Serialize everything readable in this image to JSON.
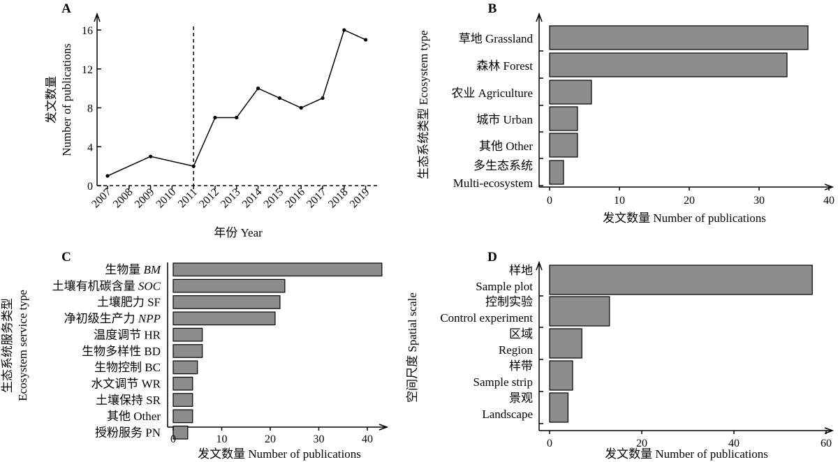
{
  "chart_data": [
    {
      "panel": "A",
      "type": "line",
      "x": [
        "2007",
        "2008",
        "2009",
        "2010",
        "2011",
        "2012",
        "2013",
        "2014",
        "2015",
        "2016",
        "2017",
        "2018",
        "2019"
      ],
      "points": [
        {
          "x": "2007",
          "y": 1
        },
        {
          "x": "2009",
          "y": 3
        },
        {
          "x": "2011",
          "y": 2
        },
        {
          "x": "2012",
          "y": 7
        },
        {
          "x": "2013",
          "y": 7
        },
        {
          "x": "2014",
          "y": 10
        },
        {
          "x": "2015",
          "y": 9
        },
        {
          "x": "2016",
          "y": 8
        },
        {
          "x": "2017",
          "y": 9
        },
        {
          "x": "2018",
          "y": 16
        },
        {
          "x": "2019",
          "y": 15
        }
      ],
      "yticks": [
        "0",
        "4",
        "8",
        "12",
        "16"
      ],
      "ylim": [
        0,
        17
      ],
      "vline_at": "2011",
      "xlabel": "年份 Year",
      "ylabel_cn": "发文数量",
      "ylabel_en": "Number of publications"
    },
    {
      "panel": "B",
      "type": "bar",
      "orientation": "horizontal",
      "categories": [
        {
          "line1": "草地 Grassland",
          "line2": ""
        },
        {
          "line1": "森林 Forest",
          "line2": ""
        },
        {
          "line1": "农业 Agriculture",
          "line2": ""
        },
        {
          "line1": "城市 Urban",
          "line2": ""
        },
        {
          "line1": "其他 Other",
          "line2": ""
        },
        {
          "line1": "多生态系统",
          "line2": "Multi-ecosystem"
        }
      ],
      "values": [
        37,
        34,
        6,
        4,
        4,
        2
      ],
      "xticks": [
        "0",
        "10",
        "20",
        "30",
        "40"
      ],
      "xlim": [
        0,
        40
      ],
      "xlabel": "发文数量 Number of publications",
      "ylabel": "生态系统类型 Ecosystem type"
    },
    {
      "panel": "C",
      "type": "bar",
      "orientation": "horizontal",
      "categories": [
        {
          "cn": "生物量 ",
          "it": "BM",
          "en": ""
        },
        {
          "cn": "土壤有机碳含量 ",
          "it": "SOC",
          "en": ""
        },
        {
          "cn": "土壤肥力 SF",
          "it": "",
          "en": ""
        },
        {
          "cn": "净初级生产力 ",
          "it": "NPP",
          "en": ""
        },
        {
          "cn": "温度调节 HR",
          "it": "",
          "en": ""
        },
        {
          "cn": "生物多样性 BD",
          "it": "",
          "en": ""
        },
        {
          "cn": "生物控制 BC",
          "it": "",
          "en": ""
        },
        {
          "cn": "水文调节 WR",
          "it": "",
          "en": ""
        },
        {
          "cn": "土壤保持 SR",
          "it": "",
          "en": ""
        },
        {
          "cn": "其他 Other",
          "it": "",
          "en": ""
        },
        {
          "cn": "授粉服务 PN",
          "it": "",
          "en": ""
        }
      ],
      "values": [
        43,
        23,
        22,
        21,
        6,
        6,
        5,
        4,
        4,
        4,
        3
      ],
      "xticks": [
        "0",
        "10",
        "20",
        "30",
        "40"
      ],
      "xlim": [
        0,
        44
      ],
      "xlabel": "发文数量 Number of publications",
      "ylabel_cn": "生态系统服务类型",
      "ylabel_en": "Ecosystem service type"
    },
    {
      "panel": "D",
      "type": "bar",
      "orientation": "horizontal",
      "categories": [
        {
          "line1": "样地",
          "line2": "Sample plot"
        },
        {
          "line1": "控制实验",
          "line2": "Control experiment"
        },
        {
          "line1": "区域",
          "line2": "Region"
        },
        {
          "line1": "样带",
          "line2": "Sample strip"
        },
        {
          "line1": "景观",
          "line2": "Landscape"
        }
      ],
      "values": [
        57,
        13,
        7,
        5,
        4
      ],
      "xticks": [
        "0",
        "20",
        "40",
        "60"
      ],
      "xlim": [
        0,
        60
      ],
      "xlabel": "发文数量 Number of publications",
      "ylabel": "空间尺度 Spatial scale"
    }
  ]
}
